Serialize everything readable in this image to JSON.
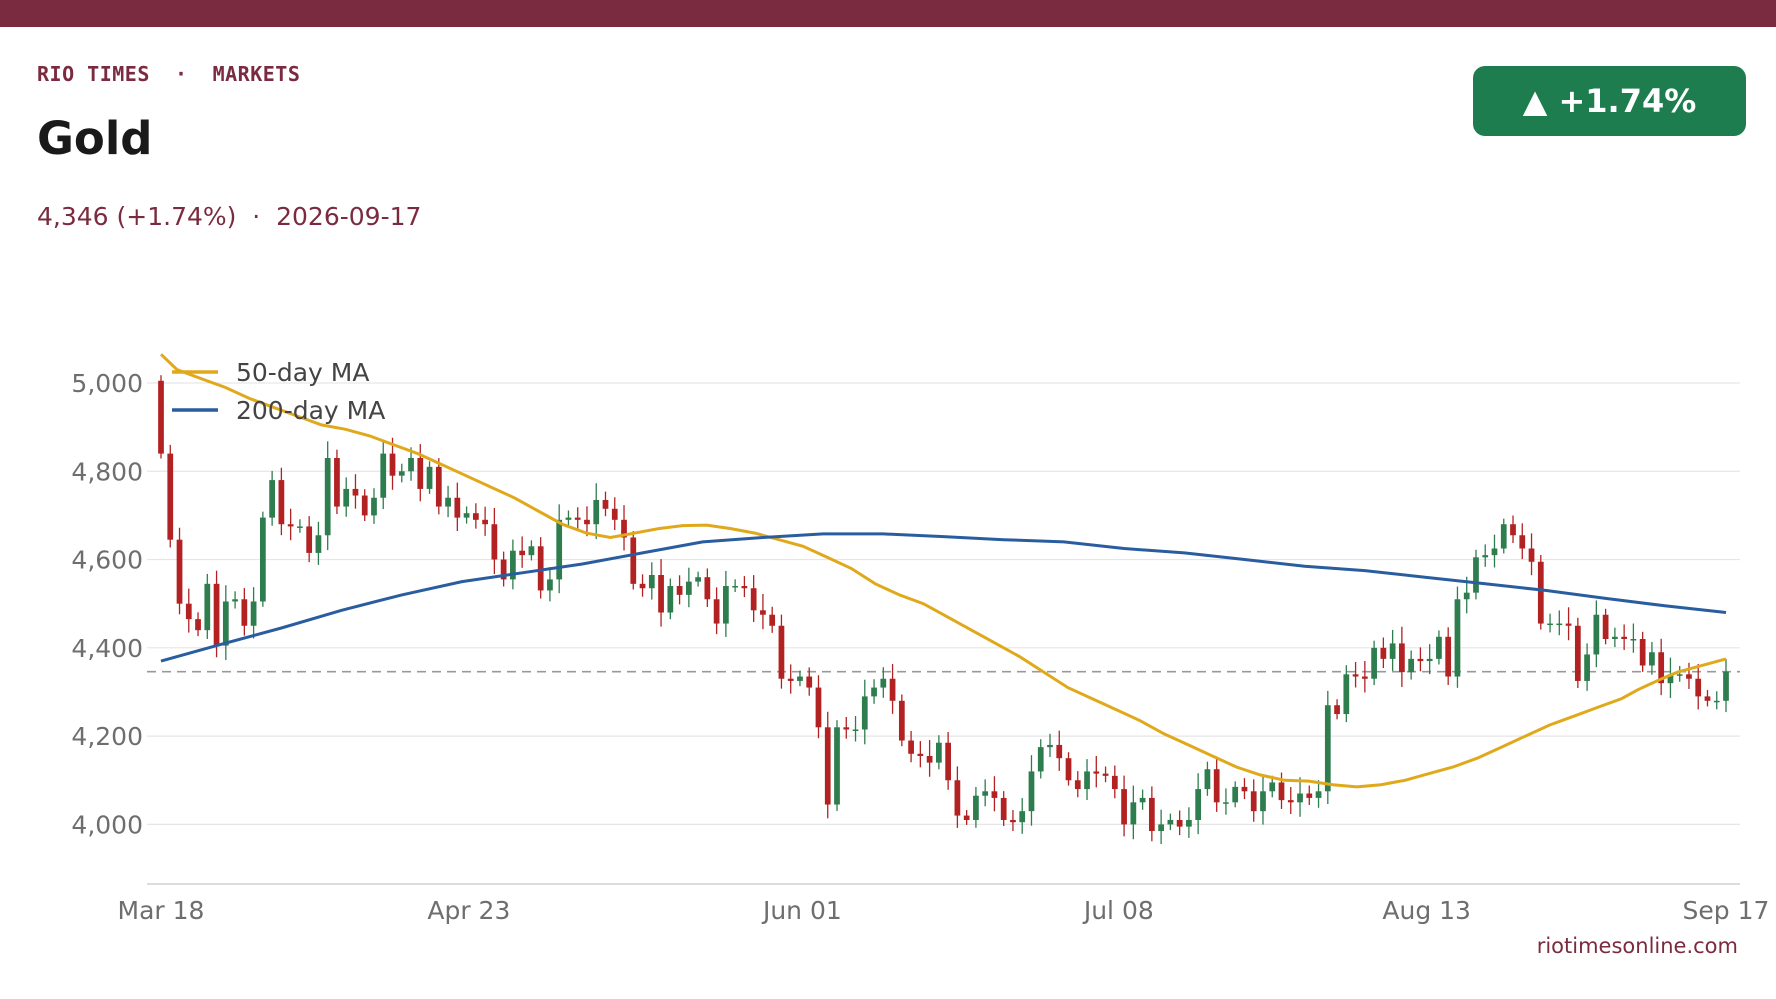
{
  "header": {
    "brand": "RIO TIMES  ·  MARKETS",
    "title": "Gold",
    "subtitle": "4,346 (+1.74%)  ·  2026-09-17",
    "badge": "▲ +1.74%",
    "site": "riotimesonline.com"
  },
  "colors": {
    "brand": "#7b2b3f",
    "up": "#2e7d4f",
    "down": "#b22222",
    "badge": "#1e7d4f",
    "ma50": "#e0a91c",
    "ma200": "#2a5d9f",
    "reference_line": "#999999"
  },
  "chart_data": {
    "type": "candlestick",
    "y_ticks": [
      4000,
      4200,
      4400,
      4600,
      4800,
      5000
    ],
    "y_tick_labels": [
      "4,000",
      "4,200",
      "4,400",
      "4,600",
      "4,800",
      "5,000"
    ],
    "ylim": [
      3865,
      5120
    ],
    "x_ticks": [
      "2026-03-18",
      "2026-04-23",
      "2026-06-01",
      "2026-07-08",
      "2026-08-13",
      "2026-09-17"
    ],
    "x_tick_labels": [
      "Mar 18",
      "Apr 23",
      "Jun 01",
      "Jul 08",
      "Aug 13",
      "Sep 17"
    ],
    "xlim": [
      "2026-03-18",
      "2026-09-17"
    ],
    "reference_line": 4346,
    "legend": {
      "position": "top-left",
      "entries": [
        "50-day MA",
        "200-day MA"
      ]
    },
    "close": [
      4840,
      4645,
      4500,
      4465,
      4440,
      4545,
      4405,
      4505,
      4510,
      4450,
      4505,
      4695,
      4780,
      4680,
      4675,
      4675,
      4615,
      4655,
      4830,
      4720,
      4760,
      4745,
      4700,
      4740,
      4840,
      4790,
      4800,
      4830,
      4760,
      4810,
      4720,
      4740,
      4695,
      4705,
      4690,
      4680,
      4600,
      4555,
      4620,
      4610,
      4630,
      4530,
      4555,
      4690,
      4695,
      4690,
      4680,
      4735,
      4715,
      4690,
      4650,
      4545,
      4535,
      4565,
      4480,
      4540,
      4520,
      4550,
      4560,
      4510,
      4455,
      4540,
      4540,
      4535,
      4485,
      4475,
      4450,
      4330,
      4325,
      4335,
      4310,
      4220,
      4045,
      4220,
      4215,
      4215,
      4290,
      4310,
      4330,
      4280,
      4190,
      4160,
      4155,
      4140,
      4185,
      4100,
      4020,
      4010,
      4065,
      4075,
      4060,
      4010,
      4005,
      4030,
      4120,
      4175,
      4180,
      4150,
      4100,
      4080,
      4120,
      4115,
      4110,
      4080,
      4000,
      4050,
      4060,
      3985,
      4000,
      4010,
      3995,
      4010,
      4080,
      4125,
      4050,
      4050,
      4085,
      4075,
      4030,
      4075,
      4095,
      4055,
      4050,
      4070,
      4060,
      4075,
      4270,
      4250,
      4340,
      4335,
      4330,
      4400,
      4375,
      4410,
      4345,
      4375,
      4370,
      4375,
      4425,
      4335,
      4510,
      4525,
      4605,
      4610,
      4625,
      4680,
      4655,
      4625,
      4595,
      4455,
      4455,
      4455,
      4450,
      4325,
      4385,
      4475,
      4420,
      4425,
      4420,
      4420,
      4360,
      4390,
      4320,
      4340,
      4340,
      4330,
      4290,
      4280,
      4280,
      4346
    ],
    "ma50": [
      [
        0,
        5065
      ],
      [
        2,
        5030
      ],
      [
        5,
        5010
      ],
      [
        8,
        4990
      ],
      [
        11,
        4965
      ],
      [
        14,
        4945
      ],
      [
        17,
        4925
      ],
      [
        20,
        4905
      ],
      [
        23,
        4895
      ],
      [
        26,
        4880
      ],
      [
        29,
        4860
      ],
      [
        32,
        4840
      ],
      [
        35,
        4815
      ],
      [
        38,
        4790
      ],
      [
        41,
        4765
      ],
      [
        44,
        4740
      ],
      [
        47,
        4710
      ],
      [
        50,
        4680
      ],
      [
        53,
        4660
      ],
      [
        56,
        4650
      ],
      [
        59,
        4660
      ],
      [
        62,
        4670
      ],
      [
        65,
        4677
      ],
      [
        68,
        4678
      ],
      [
        71,
        4670
      ],
      [
        74,
        4660
      ],
      [
        77,
        4645
      ],
      [
        80,
        4630
      ],
      [
        83,
        4605
      ],
      [
        86,
        4580
      ],
      [
        89,
        4545
      ],
      [
        92,
        4520
      ],
      [
        95,
        4500
      ],
      [
        98,
        4470
      ],
      [
        101,
        4440
      ],
      [
        104,
        4410
      ],
      [
        107,
        4380
      ],
      [
        110,
        4345
      ],
      [
        113,
        4310
      ],
      [
        116,
        4285
      ],
      [
        119,
        4260
      ],
      [
        122,
        4235
      ],
      [
        125,
        4205
      ],
      [
        128,
        4180
      ],
      [
        131,
        4155
      ],
      [
        134,
        4130
      ],
      [
        137,
        4112
      ],
      [
        140,
        4100
      ],
      [
        143,
        4098
      ],
      [
        146,
        4090
      ],
      [
        149,
        4085
      ],
      [
        152,
        4090
      ],
      [
        155,
        4100
      ],
      [
        158,
        4115
      ],
      [
        161,
        4130
      ],
      [
        164,
        4150
      ],
      [
        167,
        4175
      ],
      [
        170,
        4200
      ],
      [
        173,
        4225
      ],
      [
        176,
        4245
      ],
      [
        179,
        4265
      ],
      [
        182,
        4285
      ],
      [
        184,
        4305
      ],
      [
        187,
        4330
      ],
      [
        189,
        4345
      ],
      [
        191,
        4355
      ],
      [
        193,
        4365
      ],
      [
        195,
        4375
      ]
    ],
    "ma200": [
      [
        0,
        4370
      ],
      [
        10,
        4408
      ],
      [
        20,
        4445
      ],
      [
        30,
        4485
      ],
      [
        40,
        4520
      ],
      [
        50,
        4550
      ],
      [
        60,
        4570
      ],
      [
        70,
        4590
      ],
      [
        80,
        4615
      ],
      [
        90,
        4640
      ],
      [
        100,
        4650
      ],
      [
        110,
        4658
      ],
      [
        120,
        4658
      ],
      [
        130,
        4652
      ],
      [
        140,
        4645
      ],
      [
        150,
        4640
      ],
      [
        160,
        4625
      ],
      [
        170,
        4615
      ],
      [
        180,
        4600
      ],
      [
        190,
        4585
      ],
      [
        200,
        4575
      ],
      [
        210,
        4560
      ],
      [
        220,
        4545
      ],
      [
        230,
        4530
      ],
      [
        240,
        4512
      ],
      [
        250,
        4495
      ],
      [
        260,
        4480
      ]
    ],
    "series": [
      {
        "name": "50-day MA",
        "key": "ma50"
      },
      {
        "name": "200-day MA",
        "key": "ma200"
      }
    ]
  }
}
